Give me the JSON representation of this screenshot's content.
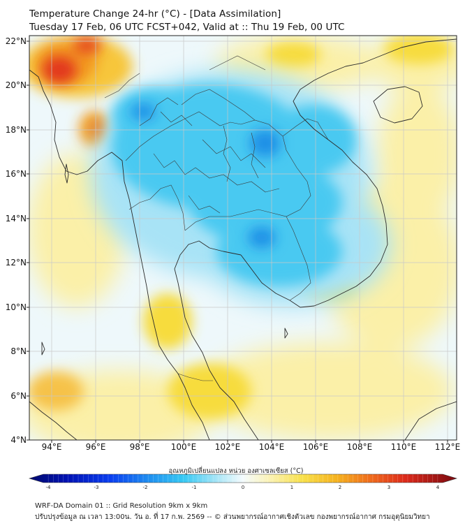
{
  "title_line1": "Temperature Change 24-hr (°C) - [Data Assimilation]",
  "title_line2": "Tuesday 17 Feb, 06 UTC FCST+042, Valid at :: Thu 19 Feb, 00 UTC",
  "lat_labels": [
    "22°N",
    "20°N",
    "18°N",
    "16°N",
    "14°N",
    "12°N",
    "10°N",
    "8°N",
    "6°N",
    "4°N"
  ],
  "lon_labels": [
    "94°E",
    "96°E",
    "98°E",
    "100°E",
    "102°E",
    "104°E",
    "106°E",
    "108°E",
    "110°E",
    "112°E"
  ],
  "colorbar": {
    "title": "อุณหภูมิเปลี่ยนแปลง หน่วย องศาเซลเซียส (°C)",
    "min": -4,
    "max": 4,
    "ticks": [
      "-4",
      "-3",
      "-2",
      "-1",
      "0",
      "1",
      "2",
      "3",
      "4"
    ]
  },
  "footer_line1": "WRF-DA Domain 01 :: Grid Resolution 9km x 9km",
  "footer_line2": "ปรับปรุงข้อมูล ณ เวลา 13:00น. วัน อ. ที่ 17 ก.พ. 2569 -- © ส่วนพยากรณ์อากาศเชิงตัวเลข กองพยากรณ์อากาศ กรมอุตุนิยมวิทยา",
  "colors": {
    "cold_strong": "#1e88e5",
    "cold": "#41c6f0",
    "cool": "#aee6f7",
    "neutral": "#f7fbfd",
    "warm_light": "#fbf1b0",
    "warm": "#f7dc38",
    "hot": "#f6a21f",
    "hotter": "#ee5a1e",
    "hottest": "#d91e1e",
    "coast": "#2a2a2a",
    "grid": "#bfbfbf"
  }
}
